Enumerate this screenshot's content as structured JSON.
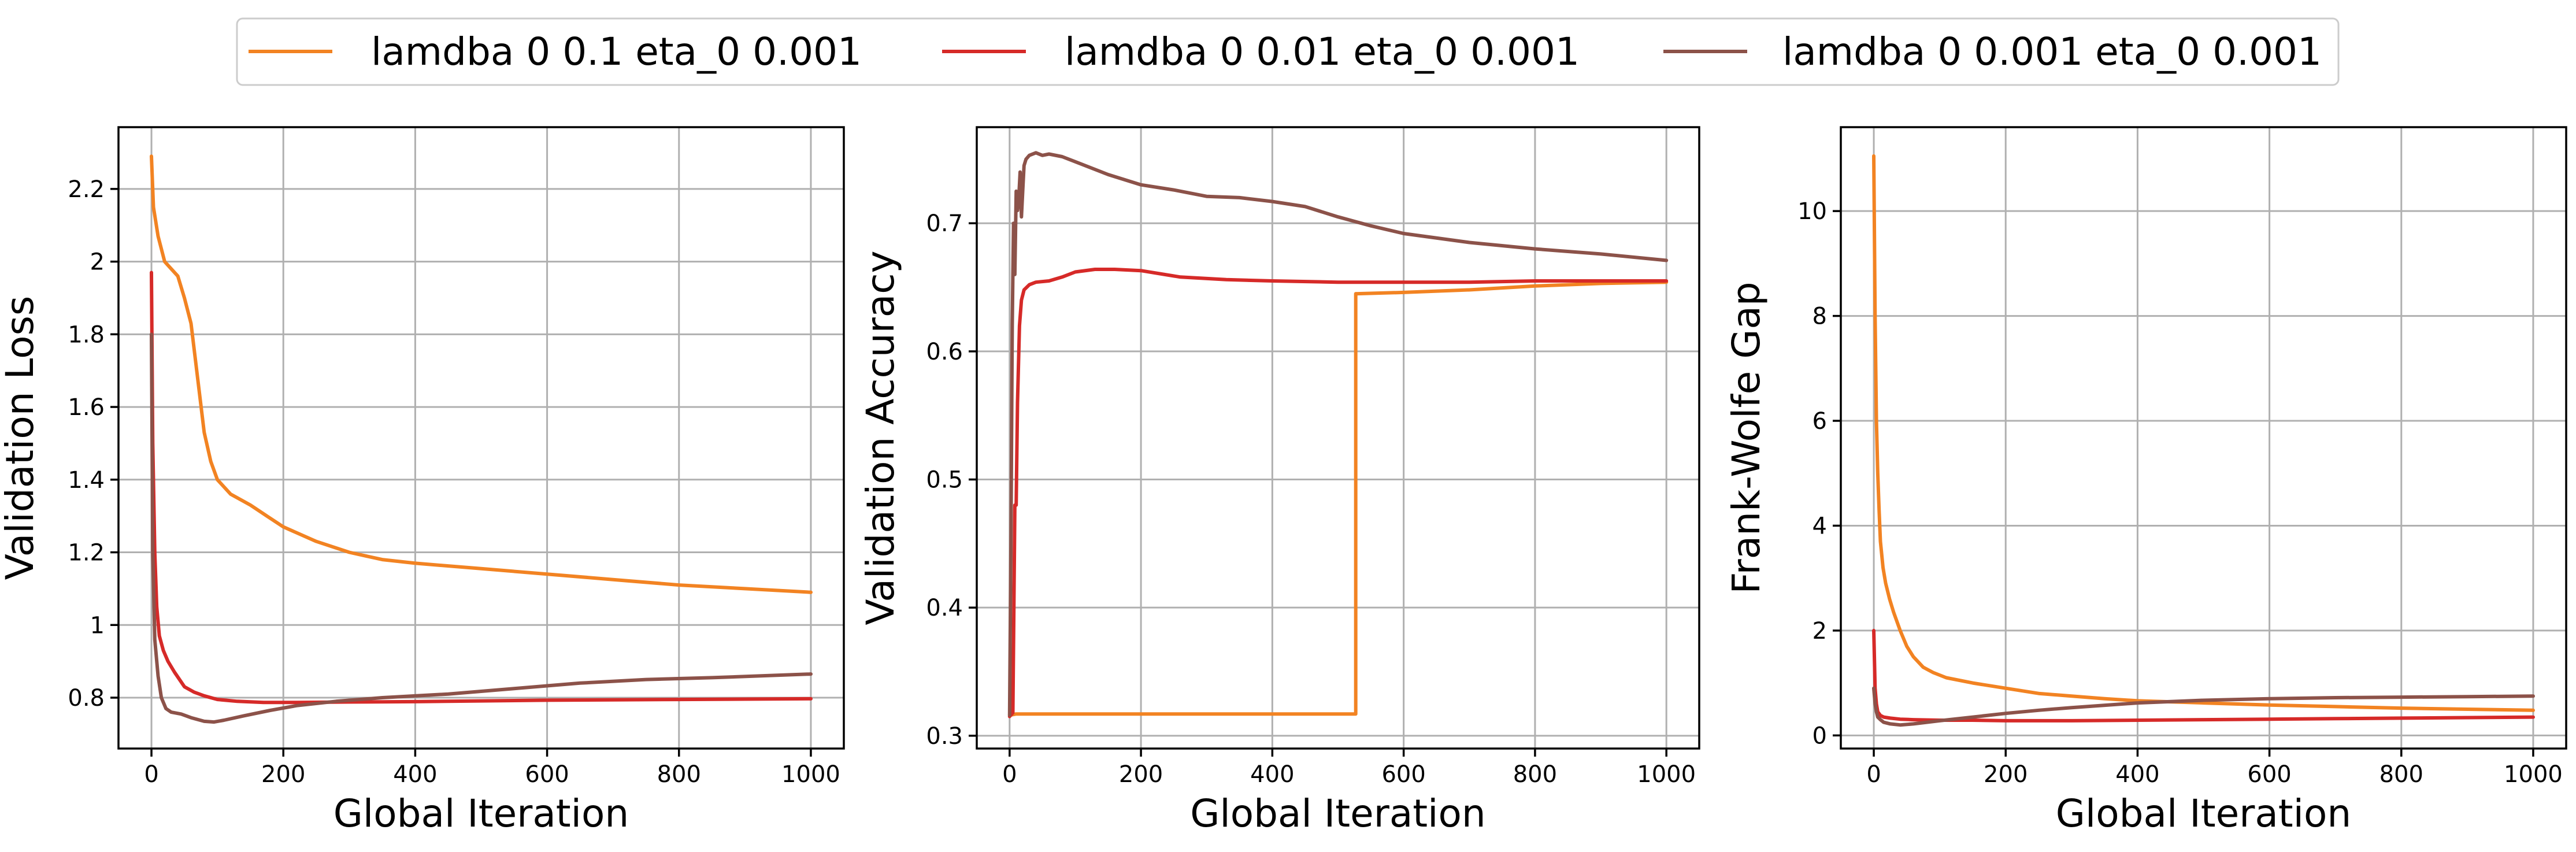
{
  "legend": {
    "entries": [
      {
        "label": "lamdba 0 0.1 eta_0 0.001",
        "color": "#f28322"
      },
      {
        "label": "lamdba 0 0.01 eta_0 0.001",
        "color": "#d62a28"
      },
      {
        "label": "lamdba 0 0.001 eta_0 0.001",
        "color": "#8c5249"
      }
    ],
    "placement": "top-center"
  },
  "chart_data": [
    {
      "type": "line",
      "xlabel": "Global Iteration",
      "ylabel": "Validation Loss",
      "xlim": [
        -50,
        1050
      ],
      "ylim": [
        0.66,
        2.37
      ],
      "xticks": [
        0,
        200,
        400,
        600,
        800,
        1000
      ],
      "yticks": [
        0.8,
        1.0,
        1.2,
        1.4,
        1.6,
        1.8,
        2.0,
        2.2
      ],
      "grid": true,
      "series": [
        {
          "name": "lamdba 0 0.1 eta_0 0.001",
          "color": "#f28322",
          "x": [
            0,
            3,
            10,
            20,
            30,
            40,
            50,
            60,
            70,
            80,
            90,
            100,
            120,
            150,
            175,
            200,
            250,
            300,
            350,
            400,
            500,
            600,
            700,
            800,
            900,
            1000
          ],
          "y": [
            2.29,
            2.15,
            2.07,
            2.0,
            1.98,
            1.96,
            1.9,
            1.83,
            1.68,
            1.53,
            1.45,
            1.4,
            1.36,
            1.33,
            1.3,
            1.27,
            1.23,
            1.2,
            1.18,
            1.17,
            1.155,
            1.14,
            1.125,
            1.11,
            1.1,
            1.09
          ]
        },
        {
          "name": "lamdba 0 0.01 eta_0 0.001",
          "color": "#d62a28",
          "x": [
            0,
            2,
            5,
            8,
            12,
            18,
            25,
            35,
            50,
            65,
            80,
            100,
            130,
            170,
            220,
            300,
            400,
            500,
            600,
            700,
            800,
            900,
            1000
          ],
          "y": [
            1.97,
            1.5,
            1.2,
            1.05,
            0.97,
            0.93,
            0.9,
            0.87,
            0.83,
            0.815,
            0.805,
            0.795,
            0.79,
            0.787,
            0.787,
            0.788,
            0.789,
            0.791,
            0.793,
            0.794,
            0.795,
            0.796,
            0.797
          ]
        },
        {
          "name": "lamdba 0 0.001 eta_0 0.001",
          "color": "#8c5249",
          "x": [
            0,
            2,
            5,
            10,
            15,
            22,
            30,
            45,
            60,
            80,
            95,
            110,
            140,
            180,
            220,
            280,
            350,
            450,
            550,
            650,
            750,
            850,
            1000
          ],
          "y": [
            1.8,
            1.2,
            0.96,
            0.86,
            0.8,
            0.77,
            0.76,
            0.755,
            0.745,
            0.735,
            0.733,
            0.738,
            0.75,
            0.765,
            0.778,
            0.79,
            0.8,
            0.81,
            0.825,
            0.84,
            0.85,
            0.855,
            0.865
          ]
        }
      ]
    },
    {
      "type": "line",
      "xlabel": "Global Iteration",
      "ylabel": "Validation Accuracy",
      "xlim": [
        -50,
        1050
      ],
      "ylim": [
        0.29,
        0.775
      ],
      "xticks": [
        0,
        200,
        400,
        600,
        800,
        1000
      ],
      "yticks": [
        0.3,
        0.4,
        0.5,
        0.6,
        0.7
      ],
      "grid": true,
      "series": [
        {
          "name": "lamdba 0 0.1 eta_0 0.001",
          "color": "#f28322",
          "x": [
            0,
            10,
            50,
            200,
            400,
            527,
            527,
            530,
            600,
            700,
            800,
            900,
            1000
          ],
          "y": [
            0.316,
            0.317,
            0.317,
            0.317,
            0.317,
            0.317,
            0.645,
            0.645,
            0.646,
            0.648,
            0.651,
            0.653,
            0.654
          ]
        },
        {
          "name": "lamdba 0 0.01 eta_0 0.001",
          "color": "#d62a28",
          "x": [
            0,
            5,
            8,
            10,
            12,
            15,
            18,
            22,
            30,
            40,
            60,
            80,
            100,
            130,
            160,
            200,
            260,
            330,
            400,
            500,
            600,
            700,
            800,
            900,
            1000
          ],
          "y": [
            0.315,
            0.318,
            0.48,
            0.48,
            0.56,
            0.62,
            0.64,
            0.648,
            0.652,
            0.654,
            0.655,
            0.658,
            0.662,
            0.664,
            0.664,
            0.663,
            0.658,
            0.656,
            0.655,
            0.654,
            0.654,
            0.654,
            0.655,
            0.655,
            0.655
          ]
        },
        {
          "name": "lamdba 0 0.001 eta_0 0.001",
          "color": "#8c5249",
          "x": [
            0,
            2,
            4,
            6,
            8,
            10,
            12,
            14,
            16,
            18,
            20,
            22,
            25,
            30,
            40,
            50,
            60,
            80,
            100,
            150,
            200,
            250,
            300,
            350,
            400,
            450,
            500,
            550,
            600,
            700,
            800,
            900,
            1000
          ],
          "y": [
            0.316,
            0.45,
            0.62,
            0.7,
            0.66,
            0.725,
            0.71,
            0.72,
            0.74,
            0.705,
            0.725,
            0.745,
            0.75,
            0.753,
            0.755,
            0.753,
            0.754,
            0.752,
            0.748,
            0.738,
            0.73,
            0.726,
            0.721,
            0.72,
            0.717,
            0.713,
            0.705,
            0.698,
            0.692,
            0.685,
            0.68,
            0.676,
            0.671
          ]
        }
      ]
    },
    {
      "type": "line",
      "xlabel": "Global Iteration",
      "ylabel": "Frank-Wolfe Gap",
      "xlim": [
        -50,
        1050
      ],
      "ylim": [
        -0.25,
        11.6
      ],
      "xticks": [
        0,
        200,
        400,
        600,
        800,
        1000
      ],
      "yticks": [
        0,
        2,
        4,
        6,
        8,
        10
      ],
      "grid": true,
      "series": [
        {
          "name": "lamdba 0 0.1 eta_0 0.001",
          "color": "#f28322",
          "x": [
            0,
            2,
            4,
            6,
            8,
            10,
            14,
            18,
            24,
            30,
            40,
            50,
            60,
            75,
            90,
            110,
            150,
            200,
            250,
            300,
            350,
            400,
            500,
            600,
            700,
            800,
            900,
            1000
          ],
          "y": [
            11.05,
            8.0,
            6.0,
            5.0,
            4.3,
            3.7,
            3.2,
            2.9,
            2.6,
            2.35,
            2.0,
            1.7,
            1.5,
            1.3,
            1.2,
            1.1,
            1.0,
            0.9,
            0.8,
            0.75,
            0.7,
            0.66,
            0.62,
            0.58,
            0.55,
            0.52,
            0.5,
            0.48
          ]
        },
        {
          "name": "lamdba 0 0.01 eta_0 0.001",
          "color": "#d62a28",
          "x": [
            0,
            2,
            4,
            6,
            10,
            15,
            25,
            40,
            60,
            100,
            150,
            200,
            300,
            400,
            500,
            600,
            700,
            800,
            900,
            1000
          ],
          "y": [
            2.0,
            0.9,
            0.6,
            0.45,
            0.38,
            0.35,
            0.33,
            0.31,
            0.3,
            0.29,
            0.29,
            0.28,
            0.28,
            0.29,
            0.3,
            0.31,
            0.32,
            0.33,
            0.34,
            0.35
          ]
        },
        {
          "name": "lamdba 0 0.001 eta_0 0.001",
          "color": "#8c5249",
          "x": [
            0,
            2,
            4,
            6,
            10,
            15,
            25,
            40,
            60,
            100,
            150,
            200,
            250,
            300,
            400,
            500,
            600,
            700,
            800,
            900,
            1000
          ],
          "y": [
            0.9,
            0.6,
            0.45,
            0.35,
            0.3,
            0.25,
            0.22,
            0.2,
            0.22,
            0.28,
            0.35,
            0.42,
            0.48,
            0.53,
            0.62,
            0.67,
            0.7,
            0.72,
            0.73,
            0.74,
            0.75
          ]
        }
      ]
    }
  ]
}
